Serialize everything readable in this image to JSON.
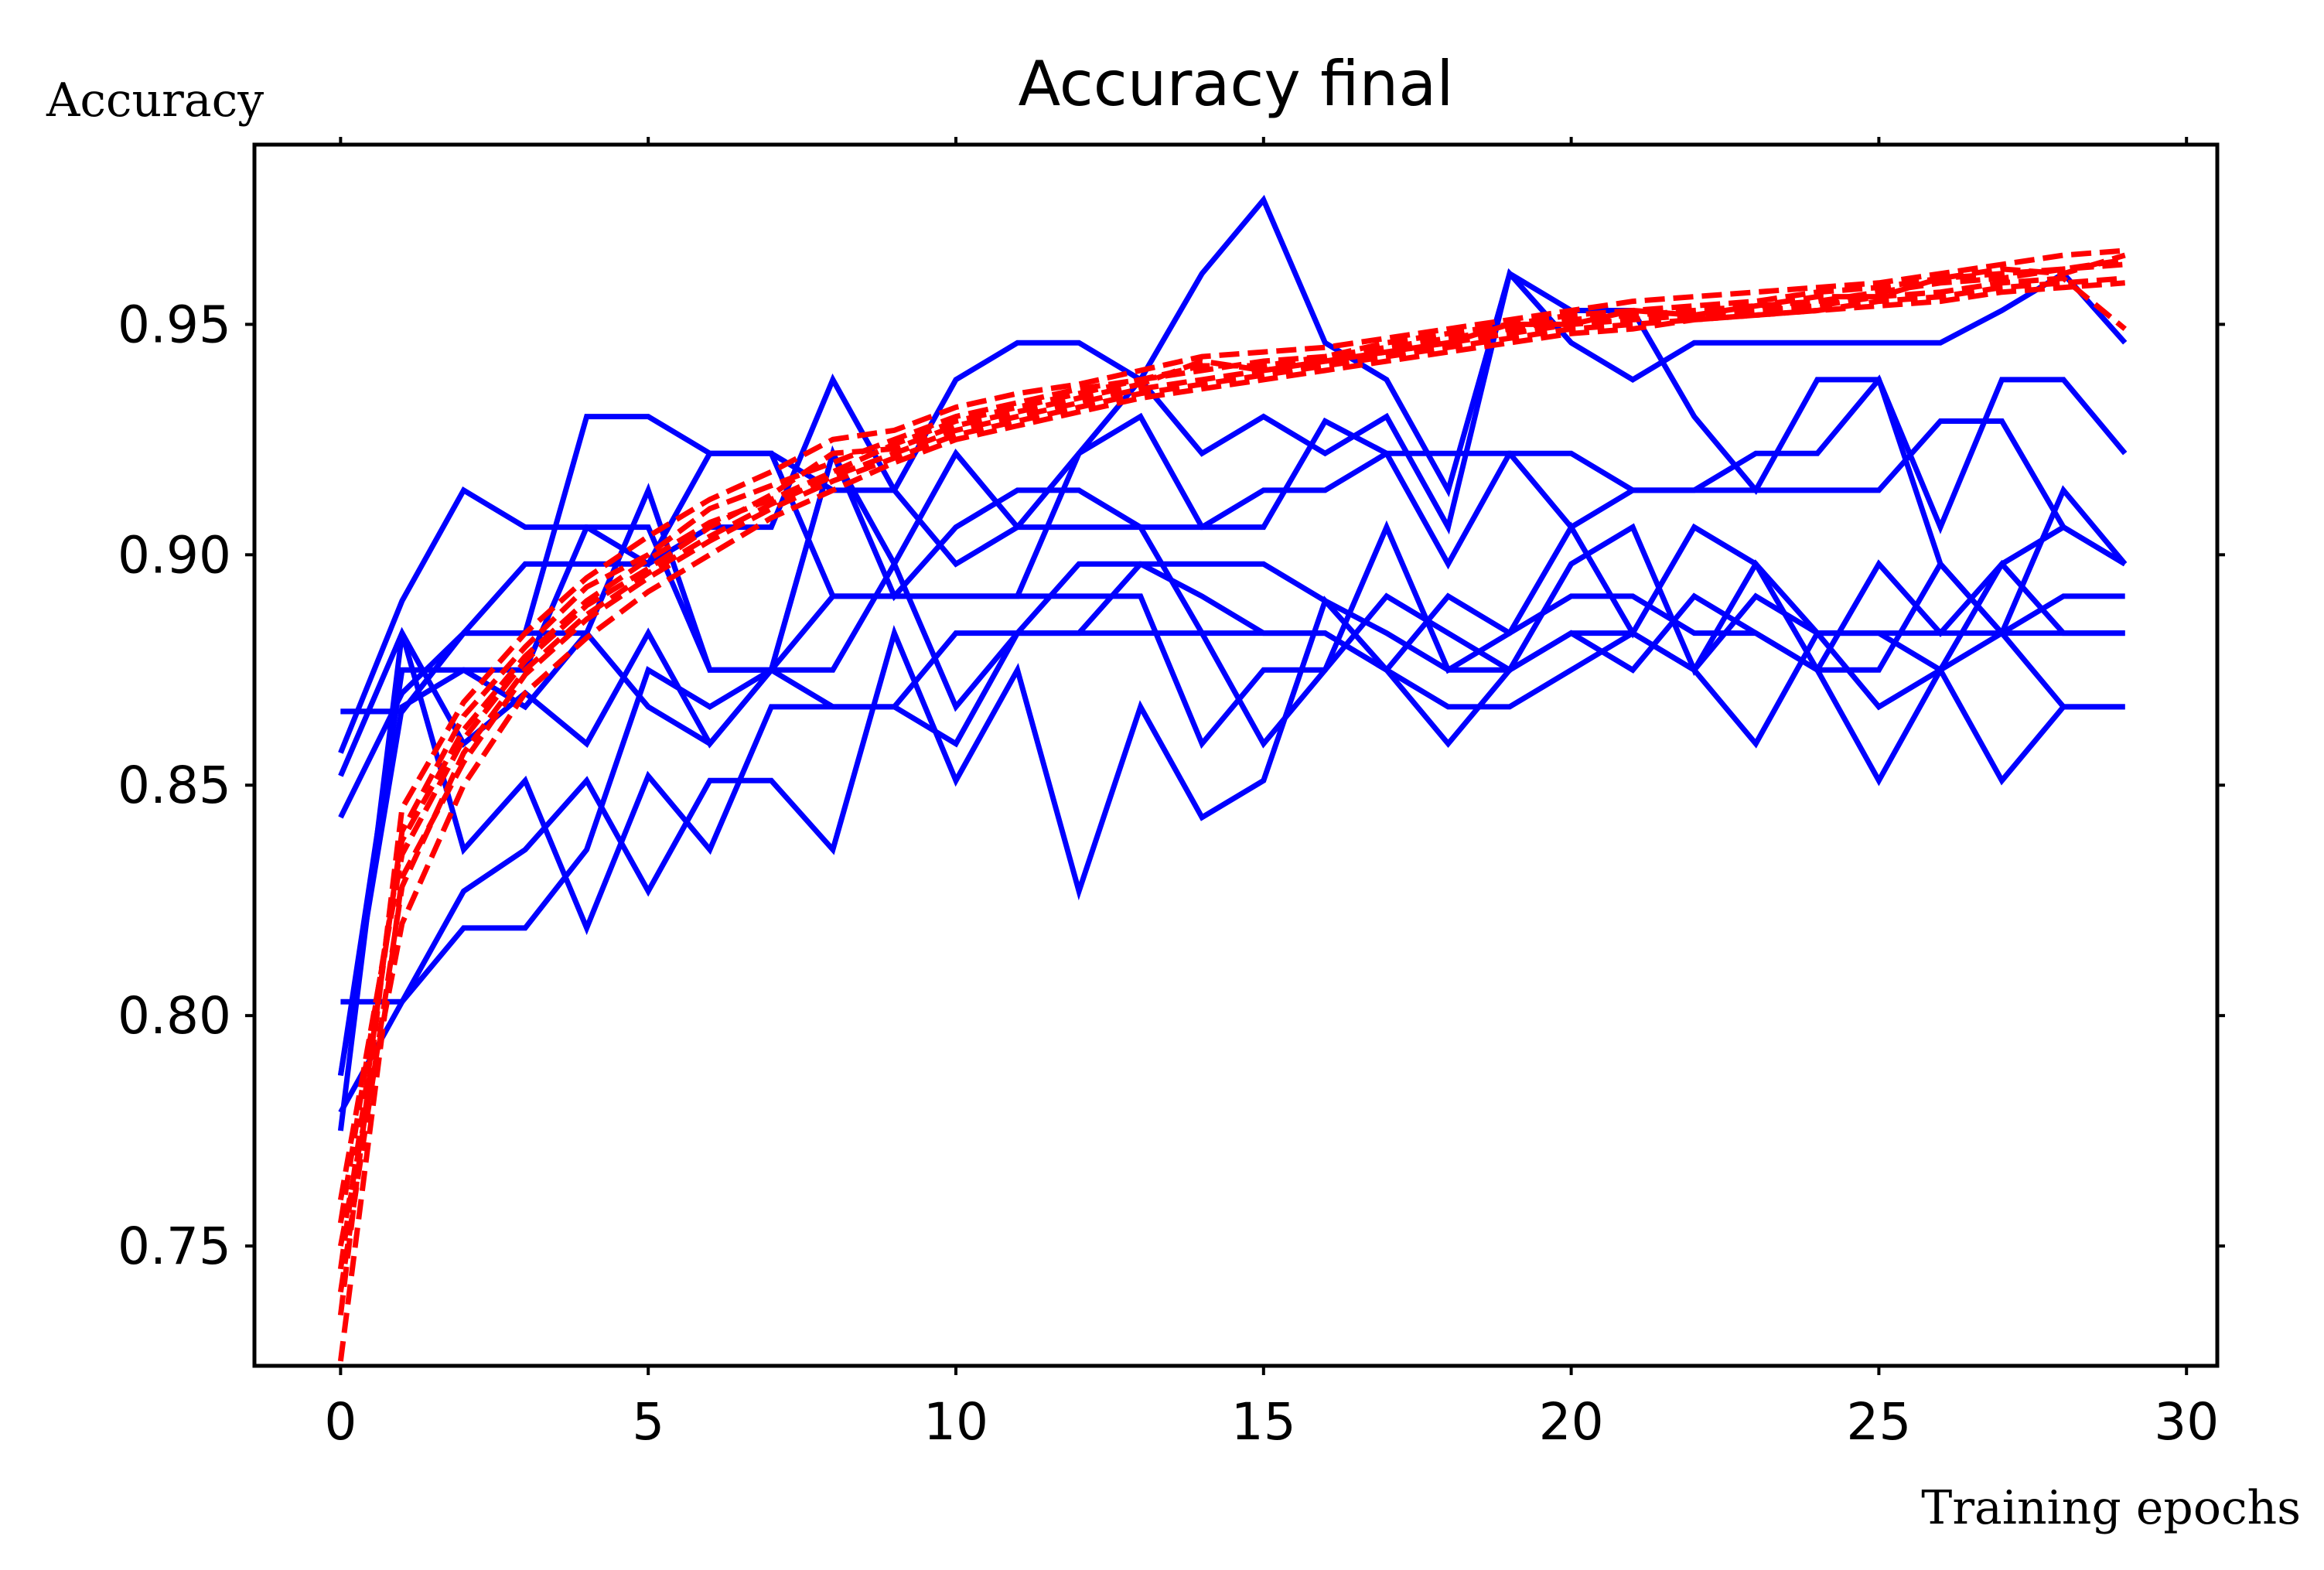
{
  "chart_data": {
    "type": "line",
    "title": "Accuracy final",
    "xlabel": "Training epochs",
    "ylabel": "Accuracy",
    "xlim": [
      -1.4,
      30.5
    ],
    "ylim": [
      0.724,
      0.989
    ],
    "xticks": [
      0,
      5,
      10,
      15,
      20,
      25,
      30
    ],
    "yticks": [
      0.75,
      0.8,
      0.85,
      0.9,
      0.95
    ],
    "ytick_labels": [
      "0.75",
      "0.80",
      "0.85",
      "0.90",
      "0.95"
    ],
    "grid": false,
    "legend": "none",
    "colors": {
      "validation": "#0000ff",
      "training": "#ff0000"
    },
    "series": [
      {
        "group": "validation",
        "style": "solid",
        "color": "#0000ff",
        "x": [
          0,
          1,
          2,
          3,
          4,
          5,
          6,
          7,
          8,
          9,
          10,
          11,
          12,
          13,
          14,
          15,
          16,
          17,
          18,
          19,
          20,
          21,
          22,
          23,
          24,
          25,
          26,
          27,
          28,
          29
        ],
        "y": [
          0.857,
          0.89,
          0.914,
          0.906,
          0.906,
          0.898,
          0.922,
          0.922,
          0.914,
          0.914,
          0.938,
          0.946,
          0.946,
          0.938,
          0.961,
          0.977,
          0.946,
          0.938,
          0.914,
          0.961,
          0.946,
          0.938,
          0.946,
          0.946,
          0.946,
          0.946,
          0.946,
          0.953,
          0.961,
          0.946
        ]
      },
      {
        "group": "validation",
        "style": "solid",
        "color": "#0000ff",
        "x": [
          0,
          1,
          2,
          3,
          4,
          5,
          6,
          7,
          8,
          9,
          10,
          11,
          12,
          13,
          14,
          15,
          16,
          17,
          18,
          19,
          20,
          21,
          22,
          23,
          24,
          25,
          26,
          27,
          28,
          29
        ],
        "y": [
          0.866,
          0.866,
          0.883,
          0.883,
          0.93,
          0.93,
          0.922,
          0.922,
          0.891,
          0.891,
          0.891,
          0.891,
          0.922,
          0.938,
          0.922,
          0.93,
          0.922,
          0.93,
          0.906,
          0.961,
          0.953,
          0.953,
          0.93,
          0.914,
          0.938,
          0.938,
          0.898,
          0.883,
          0.914,
          0.898
        ]
      },
      {
        "group": "validation",
        "style": "solid",
        "color": "#0000ff",
        "x": [
          0,
          1,
          2,
          3,
          4,
          5,
          6,
          7,
          8,
          9,
          10,
          11,
          12,
          13,
          14,
          15,
          16,
          17,
          18,
          19,
          20,
          21,
          22,
          23,
          24,
          25,
          26,
          27,
          28,
          29
        ],
        "y": [
          0.843,
          0.87,
          0.883,
          0.898,
          0.898,
          0.898,
          0.906,
          0.906,
          0.938,
          0.914,
          0.898,
          0.906,
          0.922,
          0.93,
          0.906,
          0.906,
          0.929,
          0.922,
          0.898,
          0.922,
          0.922,
          0.914,
          0.914,
          0.914,
          0.914,
          0.914,
          0.929,
          0.929,
          0.906,
          0.898
        ]
      },
      {
        "group": "validation",
        "style": "solid",
        "color": "#0000ff",
        "x": [
          0,
          1,
          2,
          3,
          4,
          5,
          6,
          7,
          8,
          9,
          10,
          11,
          12,
          13,
          14,
          15,
          16,
          17,
          18,
          19,
          20,
          21,
          22,
          23,
          24,
          25,
          26,
          27,
          28,
          29
        ],
        "y": [
          0.866,
          0.866,
          0.883,
          0.883,
          0.883,
          0.914,
          0.875,
          0.875,
          0.922,
          0.891,
          0.906,
          0.914,
          0.914,
          0.906,
          0.906,
          0.914,
          0.914,
          0.922,
          0.922,
          0.922,
          0.906,
          0.914,
          0.914,
          0.922,
          0.922,
          0.938,
          0.906,
          0.938,
          0.938,
          0.922
        ]
      },
      {
        "group": "validation",
        "style": "solid",
        "color": "#0000ff",
        "x": [
          0,
          1,
          2,
          3,
          4,
          5,
          6,
          7,
          8,
          9,
          10,
          11,
          12,
          13,
          14,
          15,
          16,
          17,
          18,
          19,
          20,
          21,
          22,
          23,
          24,
          25,
          26,
          27,
          28,
          29
        ],
        "y": [
          0.852,
          0.883,
          0.859,
          0.87,
          0.859,
          0.883,
          0.859,
          0.875,
          0.875,
          0.898,
          0.867,
          0.883,
          0.883,
          0.898,
          0.898,
          0.898,
          0.89,
          0.883,
          0.875,
          0.875,
          0.898,
          0.906,
          0.875,
          0.898,
          0.883,
          0.883,
          0.875,
          0.898,
          0.906,
          0.898
        ]
      },
      {
        "group": "validation",
        "style": "solid",
        "color": "#0000ff",
        "x": [
          0,
          1,
          2,
          3,
          4,
          5,
          6,
          7,
          8,
          9,
          10,
          11,
          12,
          13,
          14,
          15,
          16,
          17,
          18,
          19,
          20,
          21,
          22,
          23,
          24,
          25,
          26,
          27,
          28,
          29
        ],
        "y": [
          0.787,
          0.875,
          0.875,
          0.867,
          0.883,
          0.867,
          0.859,
          0.875,
          0.867,
          0.867,
          0.859,
          0.883,
          0.898,
          0.898,
          0.891,
          0.883,
          0.883,
          0.875,
          0.891,
          0.883,
          0.891,
          0.891,
          0.883,
          0.883,
          0.875,
          0.875,
          0.898,
          0.883,
          0.891,
          0.891
        ]
      },
      {
        "group": "validation",
        "style": "solid",
        "color": "#0000ff",
        "x": [
          0,
          1,
          2,
          3,
          4,
          5,
          6,
          7,
          8,
          9,
          10,
          11,
          12,
          13,
          14,
          15,
          16,
          17,
          18,
          19,
          20,
          21,
          22,
          23,
          24,
          25,
          26,
          27,
          28,
          29
        ],
        "y": [
          0.803,
          0.803,
          0.819,
          0.819,
          0.836,
          0.875,
          0.867,
          0.875,
          0.891,
          0.891,
          0.891,
          0.891,
          0.891,
          0.891,
          0.859,
          0.875,
          0.875,
          0.891,
          0.883,
          0.875,
          0.883,
          0.883,
          0.875,
          0.891,
          0.883,
          0.867,
          0.875,
          0.883,
          0.883,
          0.883
        ]
      },
      {
        "group": "validation",
        "style": "solid",
        "color": "#0000ff",
        "x": [
          0,
          1,
          2,
          3,
          4,
          5,
          6,
          7,
          8,
          9,
          10,
          11,
          12,
          13,
          14,
          15,
          16,
          17,
          18,
          19,
          20,
          21,
          22,
          23,
          24,
          25,
          26,
          27,
          28,
          29
        ],
        "y": [
          0.779,
          0.803,
          0.827,
          0.836,
          0.851,
          0.827,
          0.851,
          0.851,
          0.836,
          0.883,
          0.851,
          0.875,
          0.827,
          0.867,
          0.843,
          0.851,
          0.89,
          0.875,
          0.859,
          0.875,
          0.883,
          0.875,
          0.891,
          0.883,
          0.875,
          0.851,
          0.875,
          0.851,
          0.867,
          0.867
        ]
      },
      {
        "group": "validation",
        "style": "solid",
        "color": "#0000ff",
        "x": [
          0,
          1,
          2,
          3,
          4,
          5,
          6,
          7,
          8,
          9,
          10,
          11,
          12,
          13,
          14,
          15,
          16,
          17,
          18,
          19,
          20,
          21,
          22,
          23,
          24,
          25,
          26,
          27,
          28,
          29
        ],
        "y": [
          0.775,
          0.883,
          0.836,
          0.851,
          0.819,
          0.852,
          0.836,
          0.867,
          0.867,
          0.867,
          0.883,
          0.883,
          0.883,
          0.883,
          0.883,
          0.883,
          0.883,
          0.875,
          0.867,
          0.867,
          0.875,
          0.883,
          0.875,
          0.859,
          0.883,
          0.883,
          0.883,
          0.883,
          0.867,
          0.867
        ]
      },
      {
        "group": "validation",
        "style": "solid",
        "color": "#0000ff",
        "x": [
          0,
          1,
          2,
          3,
          4,
          5,
          6,
          7,
          8,
          9,
          10,
          11,
          12,
          13,
          14,
          15,
          16,
          17,
          18,
          19,
          20,
          21,
          22,
          23,
          24,
          25,
          26,
          27,
          28,
          29
        ],
        "y": [
          0.787,
          0.867,
          0.875,
          0.875,
          0.906,
          0.906,
          0.875,
          0.875,
          0.922,
          0.898,
          0.922,
          0.906,
          0.906,
          0.906,
          0.883,
          0.859,
          0.875,
          0.906,
          0.875,
          0.883,
          0.906,
          0.883,
          0.906,
          0.898,
          0.875,
          0.898,
          0.883,
          0.898,
          0.883,
          0.883
        ]
      },
      {
        "group": "training",
        "style": "dashed",
        "color": "#ff0000",
        "x": [
          0,
          1,
          2,
          3,
          4,
          5,
          6,
          7,
          8,
          9,
          10,
          11,
          12,
          13,
          14,
          15,
          16,
          17,
          18,
          19,
          20,
          21,
          22,
          23,
          24,
          25,
          26,
          27,
          28,
          29
        ],
        "y": [
          0.725,
          0.83,
          0.855,
          0.874,
          0.886,
          0.895,
          0.903,
          0.91,
          0.916,
          0.921,
          0.926,
          0.929,
          0.932,
          0.935,
          0.937,
          0.939,
          0.941,
          0.943,
          0.945,
          0.947,
          0.949,
          0.95,
          0.951,
          0.952,
          0.953,
          0.955,
          0.956,
          0.958,
          0.959,
          0.96
        ]
      },
      {
        "group": "training",
        "style": "dashed",
        "color": "#ff0000",
        "x": [
          0,
          1,
          2,
          3,
          4,
          5,
          6,
          7,
          8,
          9,
          10,
          11,
          12,
          13,
          14,
          15,
          16,
          17,
          18,
          19,
          20,
          21,
          22,
          23,
          24,
          25,
          26,
          27,
          28,
          29
        ],
        "y": [
          0.745,
          0.84,
          0.865,
          0.88,
          0.893,
          0.9,
          0.91,
          0.915,
          0.92,
          0.925,
          0.93,
          0.933,
          0.936,
          0.938,
          0.94,
          0.942,
          0.943,
          0.945,
          0.947,
          0.949,
          0.951,
          0.952,
          0.953,
          0.954,
          0.955,
          0.957,
          0.959,
          0.96,
          0.962,
          0.963
        ]
      },
      {
        "group": "training",
        "style": "dashed",
        "color": "#ff0000",
        "x": [
          0,
          1,
          2,
          3,
          4,
          5,
          6,
          7,
          8,
          9,
          10,
          11,
          12,
          13,
          14,
          15,
          16,
          17,
          18,
          19,
          20,
          21,
          22,
          23,
          24,
          25,
          26,
          27,
          28,
          29
        ],
        "y": [
          0.76,
          0.835,
          0.86,
          0.877,
          0.889,
          0.897,
          0.906,
          0.913,
          0.922,
          0.923,
          0.928,
          0.931,
          0.934,
          0.937,
          0.942,
          0.94,
          0.942,
          0.944,
          0.946,
          0.95,
          0.95,
          0.953,
          0.952,
          0.954,
          0.956,
          0.956,
          0.96,
          0.962,
          0.961,
          0.965
        ]
      },
      {
        "group": "training",
        "style": "dashed",
        "color": "#ff0000",
        "x": [
          0,
          1,
          2,
          3,
          4,
          5,
          6,
          7,
          8,
          9,
          10,
          11,
          12,
          13,
          14,
          15,
          16,
          17,
          18,
          19,
          20,
          21,
          22,
          23,
          24,
          25,
          26,
          27,
          28,
          29
        ],
        "y": [
          0.75,
          0.82,
          0.85,
          0.87,
          0.882,
          0.892,
          0.9,
          0.908,
          0.914,
          0.92,
          0.925,
          0.928,
          0.931,
          0.934,
          0.936,
          0.938,
          0.94,
          0.942,
          0.944,
          0.946,
          0.948,
          0.949,
          0.951,
          0.952,
          0.953,
          0.954,
          0.955,
          0.957,
          0.958,
          0.959
        ]
      },
      {
        "group": "training",
        "style": "dashed",
        "color": "#ff0000",
        "x": [
          0,
          1,
          2,
          3,
          4,
          5,
          6,
          7,
          8,
          9,
          10,
          11,
          12,
          13,
          14,
          15,
          16,
          17,
          18,
          19,
          20,
          21,
          22,
          23,
          24,
          25,
          26,
          27,
          28,
          29
        ],
        "y": [
          0.735,
          0.845,
          0.868,
          0.883,
          0.895,
          0.904,
          0.912,
          0.918,
          0.925,
          0.927,
          0.932,
          0.935,
          0.937,
          0.94,
          0.943,
          0.944,
          0.945,
          0.947,
          0.949,
          0.951,
          0.953,
          0.955,
          0.956,
          0.957,
          0.958,
          0.959,
          0.961,
          0.963,
          0.965,
          0.966
        ]
      },
      {
        "group": "training",
        "style": "dashed",
        "color": "#ff0000",
        "x": [
          0,
          1,
          2,
          3,
          4,
          5,
          6,
          7,
          8,
          9,
          10,
          11,
          12,
          13,
          14,
          15,
          16,
          17,
          18,
          19,
          20,
          21,
          22,
          23,
          24,
          25,
          26,
          27,
          28,
          29
        ],
        "y": [
          0.755,
          0.838,
          0.862,
          0.878,
          0.89,
          0.899,
          0.907,
          0.912,
          0.918,
          0.924,
          0.929,
          0.932,
          0.935,
          0.938,
          0.941,
          0.941,
          0.943,
          0.946,
          0.948,
          0.95,
          0.952,
          0.953,
          0.954,
          0.955,
          0.957,
          0.958,
          0.96,
          0.961,
          0.962,
          0.964
        ]
      },
      {
        "group": "training",
        "style": "dashed",
        "color": "#ff0000",
        "x": [
          0,
          1,
          2,
          3,
          4,
          5,
          6,
          7,
          8,
          9,
          10,
          11,
          12,
          13,
          14,
          15,
          16,
          17,
          18,
          19,
          20,
          21,
          22,
          23,
          24,
          25,
          26,
          27,
          28,
          29
        ],
        "y": [
          0.74,
          0.828,
          0.857,
          0.875,
          0.887,
          0.896,
          0.904,
          0.911,
          0.917,
          0.922,
          0.927,
          0.93,
          0.933,
          0.936,
          0.938,
          0.94,
          0.942,
          0.944,
          0.946,
          0.948,
          0.95,
          0.951,
          0.952,
          0.953,
          0.954,
          0.956,
          0.957,
          0.959,
          0.96,
          0.949
        ]
      }
    ]
  }
}
